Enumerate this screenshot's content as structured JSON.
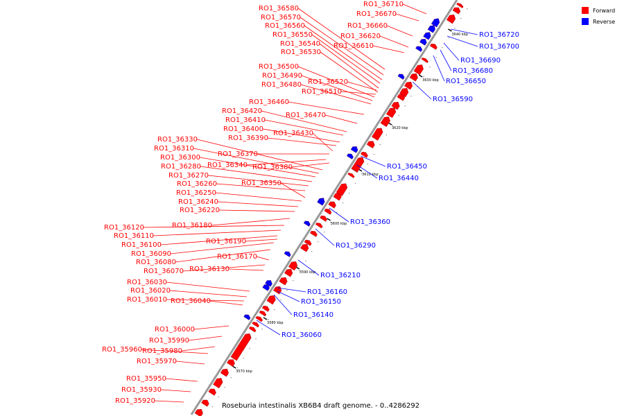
{
  "caption": "Roseburia intestinalis XB6B4 draft genome. - 0..4286292",
  "colors": {
    "forward": "#ff0000",
    "reverse": "#0000ff",
    "backbone": "#999999",
    "tick": "#000000"
  },
  "legend": [
    {
      "key": "forward",
      "label": "Forward"
    },
    {
      "key": "reverse",
      "label": "Reverse"
    }
  ],
  "ticks": [
    {
      "label": "3570 kbp"
    },
    {
      "label": "3580 kbp"
    },
    {
      "label": "3590 kbp"
    },
    {
      "label": "3600 kbp"
    },
    {
      "label": "3610 kbp"
    },
    {
      "label": "3620 kbp"
    },
    {
      "label": "3630 kbp"
    },
    {
      "label": "3640 kbp"
    }
  ],
  "forward_genes": [
    "RO1_36710",
    "RO1_36670",
    "RO1_36660",
    "RO1_36580",
    "RO1_36570",
    "RO1_36560",
    "RO1_36550",
    "RO1_36540",
    "RO1_36530",
    "RO1_36620",
    "RO1_36610",
    "RO1_36500",
    "RO1_36490",
    "RO1_36480",
    "RO1_36520",
    "RO1_36510",
    "RO1_36460",
    "RO1_36470",
    "RO1_36420",
    "RO1_36410",
    "RO1_36400",
    "RO1_36390",
    "RO1_36430",
    "RO1_36330",
    "RO1_36310",
    "RO1_36300",
    "RO1_36280",
    "RO1_36370",
    "RO1_36340",
    "RO1_36380",
    "RO1_36270",
    "RO1_36260",
    "RO1_36350",
    "RO1_36250",
    "RO1_36240",
    "RO1_36220",
    "RO1_36180",
    "RO1_36120",
    "RO1_36110",
    "RO1_36190",
    "RO1_36100",
    "RO1_36090",
    "RO1_36080",
    "RO1_36170",
    "RO1_36070",
    "RO1_36130",
    "RO1_36030",
    "RO1_36020",
    "RO1_36010",
    "RO1_36040",
    "RO1_36000",
    "RO1_35990",
    "RO1_35960",
    "RO1_35980",
    "RO1_35970",
    "RO1_35950",
    "RO1_35930",
    "RO1_35920"
  ],
  "reverse_genes": [
    "RO1_36720",
    "RO1_36700",
    "RO1_36690",
    "RO1_36680",
    "RO1_36650",
    "RO1_36590",
    "RO1_36450",
    "RO1_36440",
    "RO1_36360",
    "RO1_36290",
    "RO1_36210",
    "RO1_36160",
    "RO1_36150",
    "RO1_36140",
    "RO1_36060"
  ]
}
